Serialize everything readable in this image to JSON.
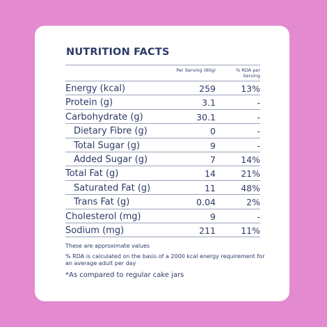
{
  "title": "NUTRITION FACTS",
  "headers": {
    "per_serving": "Per Serving (80g)",
    "rda": "% RDA per Serving"
  },
  "rows": [
    {
      "label": "Energy (kcal)",
      "value": "259",
      "rda": "13%",
      "indent": false
    },
    {
      "label": "Protein (g)",
      "value": "3.1",
      "rda": "-",
      "indent": false
    },
    {
      "label": "Carbohydrate (g)",
      "value": "30.1",
      "rda": "-",
      "indent": false
    },
    {
      "label": "Dietary Fibre (g)",
      "value": "0",
      "rda": "-",
      "indent": true
    },
    {
      "label": "Total Sugar (g)",
      "value": "9",
      "rda": "-",
      "indent": true
    },
    {
      "label": "Added Sugar (g)",
      "value": "7",
      "rda": "14%",
      "indent": true
    },
    {
      "label": "Total Fat (g)",
      "value": "14",
      "rda": "21%",
      "indent": false
    },
    {
      "label": "Saturated Fat (g)",
      "value": "11",
      "rda": "48%",
      "indent": true
    },
    {
      "label": "Trans Fat (g)",
      "value": "0.04",
      "rda": "2%",
      "indent": true
    },
    {
      "label": "Cholesterol (mg)",
      "value": "9",
      "rda": "-",
      "indent": false
    },
    {
      "label": "Sodium (mg)",
      "value": "211",
      "rda": "11%",
      "indent": false
    }
  ],
  "notes": {
    "approx": "These are approximate values",
    "rda_basis": "%  RDA is calculated on the basis of a 2000 kcal energy requirement for an average adult per day"
  },
  "footnote": "*As compared to regular cake jars",
  "colors": {
    "background": "#e38ad0",
    "card": "#ffffff",
    "text": "#2b3a66"
  }
}
